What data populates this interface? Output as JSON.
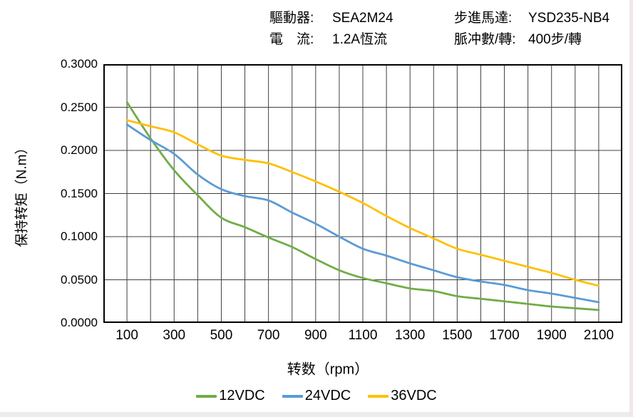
{
  "header": {
    "left": [
      {
        "label": "驅動器:",
        "value": "SEA2M24"
      },
      {
        "label": "電　流:",
        "value": "1.2A恆流"
      }
    ],
    "right": [
      {
        "label": "步進馬達:",
        "value": "YSD235-NB4"
      },
      {
        "label": "脈冲數/轉:",
        "value": "400步/轉"
      }
    ]
  },
  "chart_data": {
    "type": "line",
    "title": "",
    "xlabel": "转数（rpm）",
    "ylabel": "保持转矩（N.m）",
    "xlim": [
      0,
      2200
    ],
    "ylim": [
      0,
      0.3
    ],
    "grid": true,
    "grid_step_x": 100,
    "grid_step_y": 0.05,
    "grid_color": "#404040",
    "border_color": "#000000",
    "legend_position": "bottom",
    "x_tick_values": [
      100,
      300,
      500,
      700,
      900,
      1100,
      1300,
      1500,
      1700,
      1900,
      2100
    ],
    "x_tick_labels": [
      "100",
      "300",
      "500",
      "700",
      "900",
      "1100",
      "1300",
      "1500",
      "1700",
      "1900",
      "2100"
    ],
    "y_tick_values_topdown": [
      0.3,
      0.25,
      0.2,
      0.15,
      0.1,
      0.05,
      0
    ],
    "y_tick_labels_topdown": [
      "0.3000",
      "0.2500",
      "0.2000",
      "0.1500",
      "0.1000",
      "0.0500",
      "0.0000"
    ],
    "x": [
      100,
      200,
      300,
      400,
      500,
      600,
      700,
      800,
      900,
      1000,
      1100,
      1200,
      1300,
      1400,
      1500,
      1600,
      1700,
      1800,
      1900,
      2000,
      2100
    ],
    "series": [
      {
        "name": "12VDC",
        "color": "#70AD47",
        "values": [
          0.256,
          0.214,
          0.177,
          0.148,
          0.122,
          0.111,
          0.099,
          0.088,
          0.074,
          0.061,
          0.052,
          0.046,
          0.04,
          0.037,
          0.031,
          0.028,
          0.025,
          0.022,
          0.019,
          0.017,
          0.015
        ]
      },
      {
        "name": "24VDC",
        "color": "#5B9BD5",
        "values": [
          0.23,
          0.212,
          0.196,
          0.172,
          0.155,
          0.147,
          0.142,
          0.128,
          0.115,
          0.1,
          0.086,
          0.078,
          0.069,
          0.061,
          0.053,
          0.048,
          0.044,
          0.038,
          0.034,
          0.029,
          0.024
        ]
      },
      {
        "name": "36VDC",
        "color": "#FFC000",
        "values": [
          0.235,
          0.228,
          0.221,
          0.207,
          0.194,
          0.189,
          0.185,
          0.175,
          0.164,
          0.152,
          0.139,
          0.124,
          0.11,
          0.098,
          0.086,
          0.079,
          0.072,
          0.065,
          0.058,
          0.05,
          0.043
        ]
      }
    ]
  }
}
